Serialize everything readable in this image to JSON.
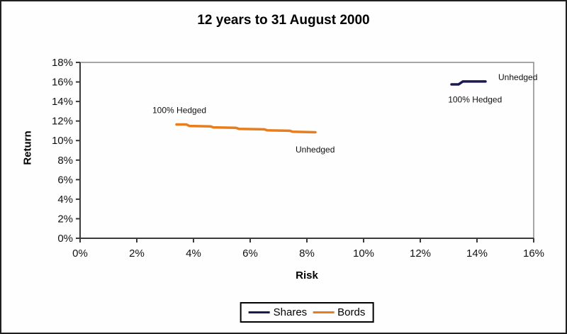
{
  "chart_data": {
    "type": "line",
    "title": "12 years to 31 August 2000",
    "xlabel": "Risk",
    "ylabel": "Return",
    "xlim": [
      0,
      16
    ],
    "ylim": [
      0,
      18
    ],
    "x_ticks": [
      "0%",
      "2%",
      "4%",
      "6%",
      "8%",
      "10%",
      "12%",
      "14%",
      "16%"
    ],
    "y_ticks": [
      "0%",
      "2%",
      "4%",
      "6%",
      "8%",
      "10%",
      "12%",
      "14%",
      "16%",
      "18%"
    ],
    "grid": false,
    "legend_position": "bottom-center",
    "series": [
      {
        "name": "Shares",
        "color": "#1a1a52",
        "points": [
          [
            13.1,
            15.75
          ],
          [
            13.35,
            15.75
          ],
          [
            13.5,
            16.05
          ],
          [
            14.3,
            16.05
          ]
        ],
        "endpoints": {
          "hedged_100": [
            13.1,
            15.8
          ],
          "unhedged": [
            14.3,
            16.0
          ]
        }
      },
      {
        "name": "Bords",
        "color": "#e87d1e",
        "points": [
          [
            3.4,
            11.65
          ],
          [
            3.75,
            11.65
          ],
          [
            3.85,
            11.5
          ],
          [
            4.6,
            11.45
          ],
          [
            4.7,
            11.35
          ],
          [
            5.5,
            11.3
          ],
          [
            5.6,
            11.2
          ],
          [
            6.5,
            11.15
          ],
          [
            6.6,
            11.05
          ],
          [
            7.4,
            11.0
          ],
          [
            7.5,
            10.9
          ],
          [
            8.3,
            10.85
          ]
        ],
        "endpoints": {
          "hedged_100": [
            3.4,
            11.6
          ],
          "unhedged": [
            8.3,
            10.8
          ]
        }
      }
    ],
    "annotations": [
      {
        "text": "100% Hedged",
        "x": 2.55,
        "y": 12.8,
        "series": "Bords"
      },
      {
        "text": "Unhedged",
        "x": 7.6,
        "y": 8.8,
        "series": "Bords"
      },
      {
        "text": "Unhedged",
        "x": 14.75,
        "y": 16.2,
        "series": "Shares"
      },
      {
        "text": "100% Hedged",
        "x": 12.98,
        "y": 13.9,
        "series": "Shares"
      }
    ],
    "colors": {
      "axis": "#3a3a3a",
      "plot_border": "#8a8a8a",
      "text": "#111111",
      "frame_border": "#1f1f1f"
    }
  }
}
